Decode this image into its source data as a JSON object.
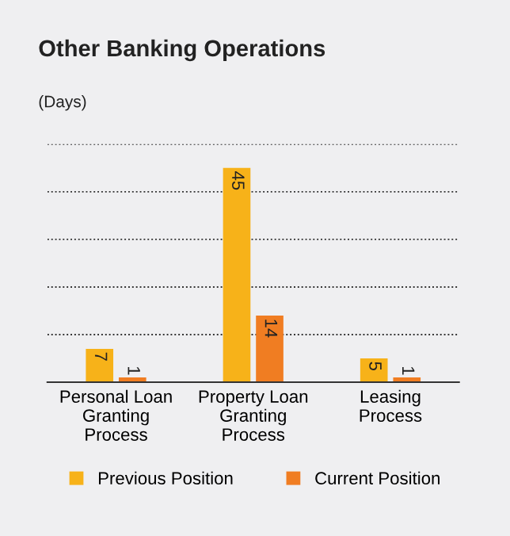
{
  "chart_data": {
    "type": "bar",
    "title": "Other Banking Operations",
    "subtitle": "(Days)",
    "categories": [
      "Personal Loan\nGranting\nProcess",
      "Property Loan\nGranting\nProcess",
      "Leasing\nProcess"
    ],
    "series": [
      {
        "name": "Previous Position",
        "color": "#f7b219",
        "values": [
          7,
          45,
          5
        ]
      },
      {
        "name": "Current Position",
        "color": "#f07d22",
        "values": [
          1,
          14,
          1
        ]
      }
    ],
    "ylim": [
      0,
      50
    ],
    "yticks": [
      {
        "value": 10,
        "label": null
      },
      {
        "value": 20,
        "label": null
      },
      {
        "value": 30,
        "label": null
      },
      {
        "value": 40,
        "label": null
      },
      {
        "value": 50,
        "label": null
      }
    ],
    "tick_labels": "x",
    "grid": "y",
    "legend": "bottom",
    "data_labels": true
  }
}
